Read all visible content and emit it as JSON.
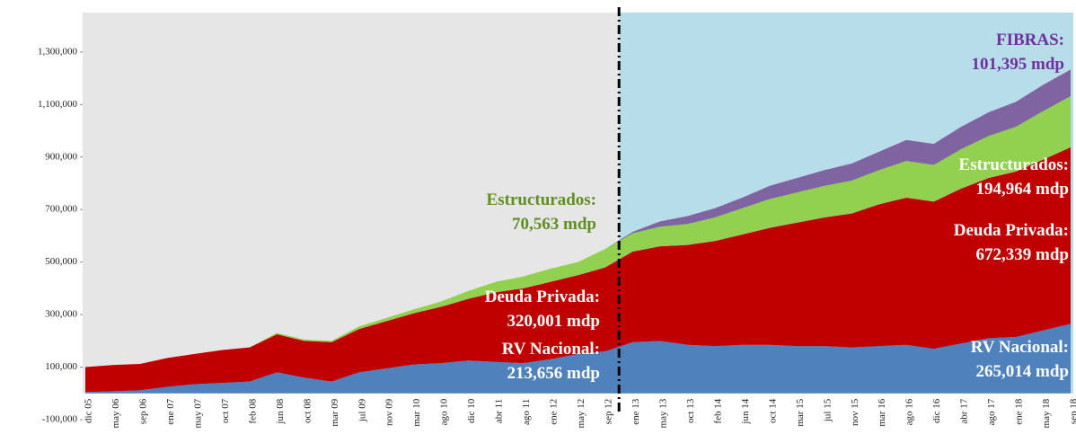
{
  "chart_data": {
    "type": "stacked_area",
    "categories": [
      "dic 05",
      "may 06",
      "sep 06",
      "ene 07",
      "may 07",
      "oct 07",
      "feb 08",
      "jun 08",
      "oct 08",
      "mar 09",
      "jul 09",
      "nov 09",
      "mar 10",
      "ago 10",
      "dic 10",
      "abr 11",
      "ago 11",
      "ene 12",
      "may 12",
      "sep 12",
      "ene 13",
      "may 13",
      "oct 13",
      "feb 14",
      "jun 14",
      "oct 14",
      "mar 15",
      "jul 15",
      "nov 15",
      "mar 16",
      "ago 16",
      "dic 16",
      "abr 17",
      "ago 17",
      "ene 18",
      "may 18",
      "sep 18"
    ],
    "series": [
      {
        "name": "RV Nacional",
        "color": "#4f81bd",
        "values": [
          5000,
          8000,
          12000,
          25000,
          35000,
          40000,
          45000,
          80000,
          60000,
          45000,
          80000,
          95000,
          110000,
          115000,
          125000,
          120000,
          115000,
          130000,
          150000,
          160000,
          195000,
          200000,
          185000,
          180000,
          185000,
          185000,
          180000,
          180000,
          175000,
          180000,
          185000,
          170000,
          190000,
          210000,
          215000,
          240000,
          265000
        ]
      },
      {
        "name": "Deuda Privada",
        "color": "#c00000",
        "values": [
          95000,
          100000,
          100000,
          110000,
          115000,
          125000,
          130000,
          145000,
          140000,
          150000,
          165000,
          180000,
          195000,
          215000,
          235000,
          265000,
          285000,
          295000,
          300000,
          320000,
          345000,
          360000,
          380000,
          400000,
          420000,
          445000,
          470000,
          490000,
          510000,
          540000,
          560000,
          560000,
          590000,
          610000,
          630000,
          650000,
          672000
        ]
      },
      {
        "name": "Estructurados",
        "color": "#92d050",
        "values": [
          0,
          0,
          0,
          0,
          0,
          0,
          0,
          5000,
          5000,
          5000,
          10000,
          12000,
          15000,
          20000,
          30000,
          40000,
          45000,
          50000,
          50000,
          70000,
          70000,
          75000,
          80000,
          90000,
          100000,
          110000,
          115000,
          120000,
          125000,
          130000,
          140000,
          140000,
          150000,
          160000,
          170000,
          185000,
          195000
        ]
      },
      {
        "name": "FIBRAS",
        "color": "#8064a2",
        "values": [
          0,
          0,
          0,
          0,
          0,
          0,
          0,
          0,
          0,
          0,
          0,
          0,
          0,
          0,
          0,
          0,
          0,
          0,
          0,
          0,
          5000,
          20000,
          30000,
          35000,
          40000,
          50000,
          55000,
          60000,
          65000,
          70000,
          80000,
          80000,
          85000,
          90000,
          95000,
          100000,
          101000
        ]
      }
    ],
    "ylim": [
      -100000,
      1450000
    ],
    "yticks": [
      {
        "value": -100000,
        "label": "-100,000"
      },
      {
        "value": 100000,
        "label": "100,000"
      },
      {
        "value": 300000,
        "label": "300,000"
      },
      {
        "value": 500000,
        "label": "500,000"
      },
      {
        "value": 700000,
        "label": "700,000"
      },
      {
        "value": 900000,
        "label": "900,000"
      },
      {
        "value": 1100000,
        "label": "1,100,000"
      },
      {
        "value": 1300000,
        "label": "1,300,000"
      }
    ],
    "annotations": [
      {
        "lines": [
          "Estructurados:",
          "70,563 mdp"
        ],
        "color": "#5e8f1f"
      },
      {
        "lines": [
          "Deuda Privada:",
          "320,001 mdp"
        ],
        "color": "#ffffff"
      },
      {
        "lines": [
          "RV Nacional:",
          "213,656  mdp"
        ],
        "color": "#ffffff"
      },
      {
        "lines": [
          "FIBRAS:",
          "101,395 mdp"
        ],
        "color": "#7030a0"
      },
      {
        "lines": [
          "Estructurados:",
          "194,964 mdp"
        ],
        "color": "#ffffff"
      },
      {
        "lines": [
          "Deuda Privada:",
          "672,339 mdp"
        ],
        "color": "#ffffff"
      },
      {
        "lines": [
          "RV Nacional:",
          "265,014 mdp"
        ],
        "color": "#ffffff"
      }
    ]
  }
}
